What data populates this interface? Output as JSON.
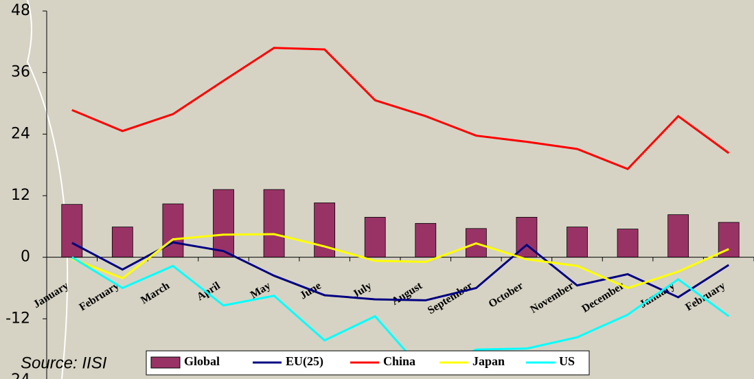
{
  "chart_data": {
    "type": "bar_line",
    "source": "Source: IISI",
    "categories": [
      "January",
      "February",
      "March",
      "April",
      "May",
      "June",
      "July",
      "August",
      "September",
      "October",
      "November",
      "December",
      "January",
      "February"
    ],
    "series": [
      {
        "name": "Global",
        "type": "bar",
        "color": "#993366",
        "values": [
          10.3,
          5.9,
          10.4,
          13.2,
          13.2,
          10.6,
          7.8,
          6.6,
          5.6,
          7.8,
          5.9,
          5.5,
          8.3,
          6.8
        ]
      },
      {
        "name": "EU(25)",
        "type": "line",
        "color": "#000080",
        "values": [
          2.8,
          -2.4,
          2.9,
          1.2,
          -3.6,
          -7.4,
          -8.2,
          -8.4,
          -6.0,
          2.4,
          -5.5,
          -3.3,
          -7.8,
          -1.5
        ]
      },
      {
        "name": "China",
        "type": "line",
        "color": "#ff0000",
        "values": [
          28.7,
          24.6,
          27.9,
          34.4,
          40.8,
          40.5,
          30.6,
          27.5,
          23.7,
          22.5,
          21.1,
          17.2,
          27.5,
          20.3
        ]
      },
      {
        "name": "Japan",
        "type": "line",
        "color": "#ffff00",
        "values": [
          -0.3,
          -4.1,
          3.5,
          4.4,
          4.5,
          2.1,
          -0.7,
          -0.9,
          2.7,
          -0.4,
          -1.7,
          -6.0,
          -2.8,
          1.6
        ]
      },
      {
        "name": "US",
        "type": "line",
        "color": "#00ffff",
        "values": [
          0,
          -6.0,
          -1.7,
          -9.4,
          -7.5,
          -16.2,
          -11.5,
          -22.7,
          -18.0,
          -17.8,
          -15.6,
          -11.2,
          -4.3,
          -11.5
        ]
      }
    ],
    "ylim": [
      -24,
      48
    ],
    "yticks": [
      -24,
      -12,
      0,
      12,
      24,
      36,
      48
    ],
    "grid": false,
    "legend": "bottom"
  }
}
